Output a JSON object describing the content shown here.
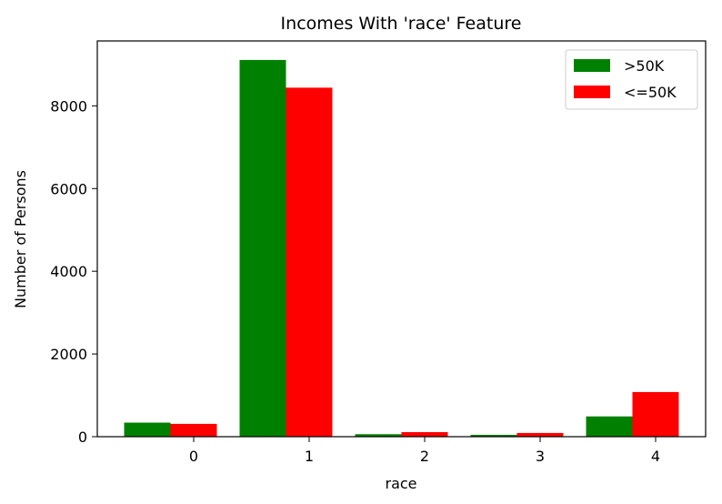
{
  "chart_data": {
    "type": "bar",
    "title": "Incomes With 'race' Feature",
    "xlabel": "race",
    "ylabel": "Number of Persons",
    "categories": [
      "0",
      "1",
      "2",
      "3",
      "4"
    ],
    "series": [
      {
        "name": ">50K",
        "color": "#008000",
        "values": [
          340,
          9110,
          60,
          45,
          490
        ]
      },
      {
        "name": "<=50K",
        "color": "#ff0000",
        "values": [
          310,
          8440,
          110,
          90,
          1080
        ]
      }
    ],
    "yticks": [
      0,
      2000,
      4000,
      6000,
      8000
    ],
    "ylim": [
      0,
      9570
    ],
    "grid": false,
    "legend_position": "top-right"
  }
}
